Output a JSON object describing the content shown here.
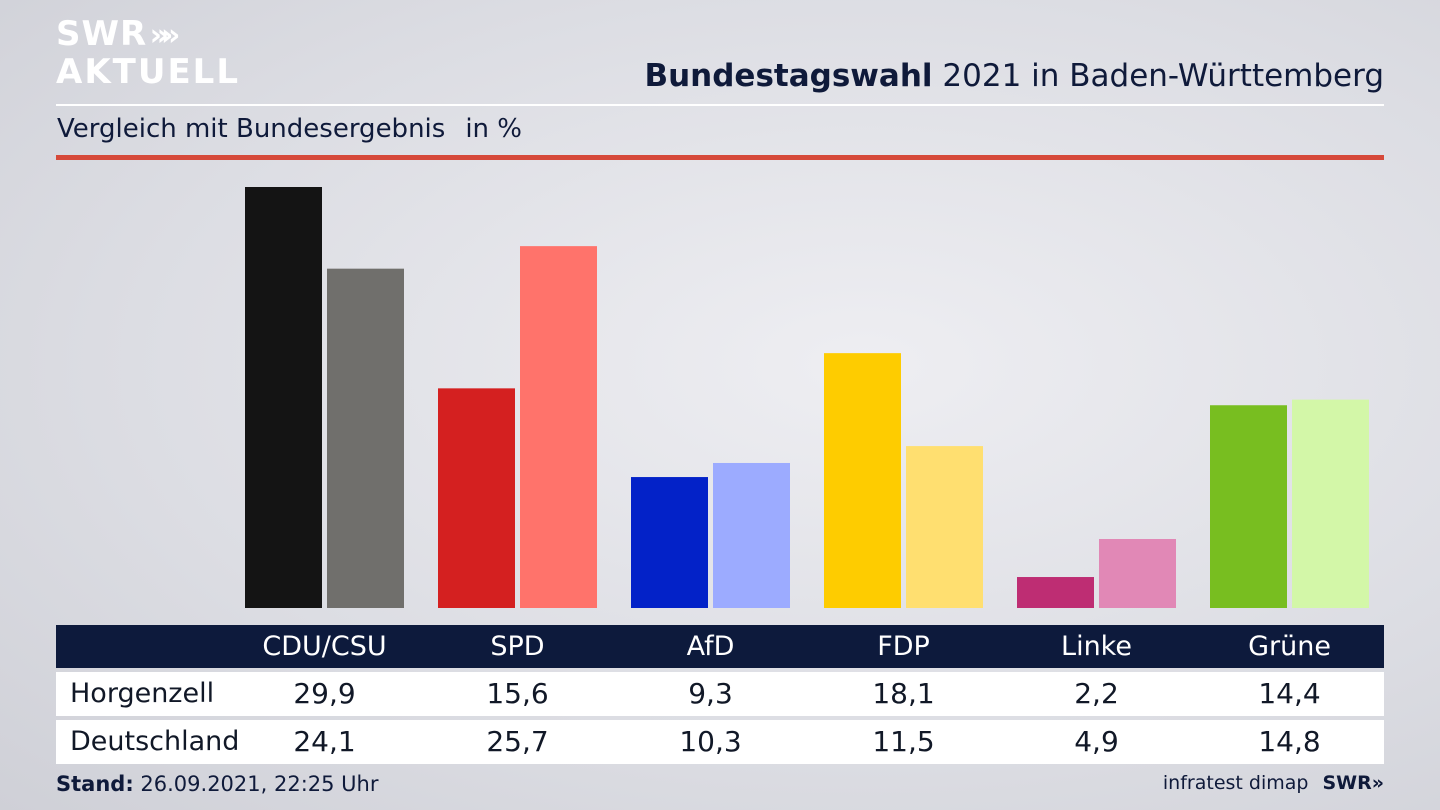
{
  "brand": {
    "line1": "SWR",
    "line2": "AKTUELL",
    "chevrons": "»",
    "footer_logo": "SWR»"
  },
  "header": {
    "title_bold": "Bundestagswahl",
    "title_rest": " 2021 in Baden-Württemberg"
  },
  "subtitle": {
    "text": "Vergleich mit Bundesergebnis",
    "unit": "in %"
  },
  "footer": {
    "stand_label": "Stand:",
    "stand_value": " 26.09.2021, 22:25 Uhr",
    "source": "infratest dimap"
  },
  "colors": {
    "local": [
      "#141414",
      "#d42020",
      "#0322c8",
      "#fecc00",
      "#be2d73",
      "#78be20"
    ],
    "national": [
      "#706f6c",
      "#ff736b",
      "#9cabff",
      "#ffdf70",
      "#e188b6",
      "#d3f7a8"
    ],
    "header_bg": "#0d1a3c",
    "accent_rule": "#d6493a"
  },
  "chart_data": {
    "type": "bar",
    "categories": [
      "CDU/CSU",
      "SPD",
      "AfD",
      "FDP",
      "Linke",
      "Grüne"
    ],
    "series": [
      {
        "name": "Horgenzell",
        "values": [
          29.9,
          15.6,
          9.3,
          18.1,
          2.2,
          14.4
        ]
      },
      {
        "name": "Deutschland",
        "values": [
          24.1,
          25.7,
          10.3,
          11.5,
          4.9,
          14.8
        ]
      }
    ],
    "display_values": {
      "Horgenzell": [
        "29,9",
        "15,6",
        "9,3",
        "18,1",
        "2,2",
        "14,4"
      ],
      "Deutschland": [
        "24,1",
        "25,7",
        "10,3",
        "11,5",
        "4,9",
        "14,8"
      ]
    },
    "ylabel": "in %",
    "grid": false
  }
}
